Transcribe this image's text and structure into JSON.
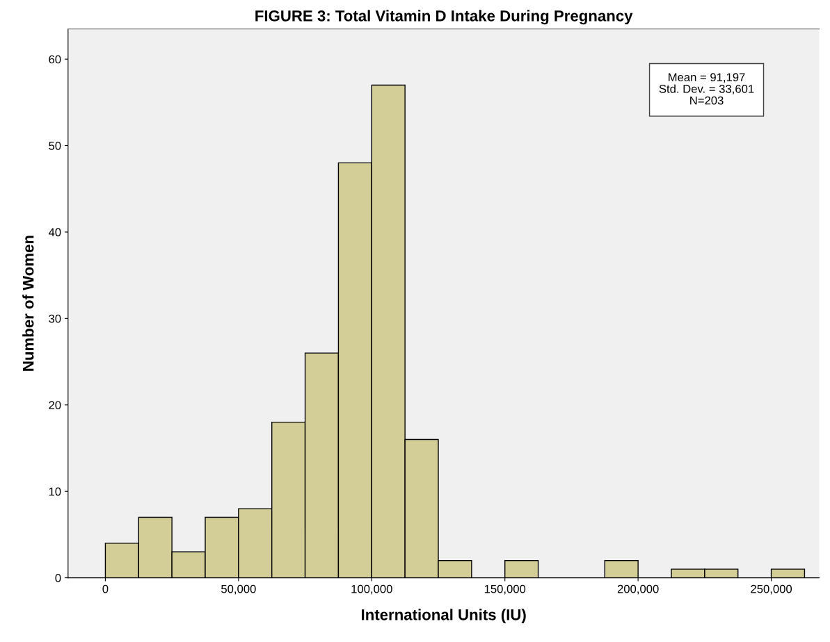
{
  "chart_data": {
    "type": "histogram",
    "title": "FIGURE 3: Total Vitamin D Intake During Pregnancy",
    "xlabel": "International Units (IU)",
    "ylabel": "Number of Women",
    "bins": [
      0,
      12500,
      25000,
      37500,
      50000,
      62500,
      75000,
      87500,
      100000,
      112500,
      125000,
      137500,
      150000,
      162500,
      175000,
      187500,
      200000,
      212500,
      225000,
      237500,
      250000,
      262500
    ],
    "values": [
      4,
      7,
      3,
      7,
      8,
      18,
      26,
      48,
      57,
      16,
      2,
      0,
      2,
      0,
      0,
      2,
      0,
      1,
      1,
      0,
      1
    ],
    "color": "#d3ce97",
    "xlim": [
      -14000,
      268000
    ],
    "ylim": [
      0,
      63.5
    ],
    "xticks": [
      {
        "value": 0,
        "label": "0"
      },
      {
        "value": 50000,
        "label": "50,000"
      },
      {
        "value": 100000,
        "label": "100,000"
      },
      {
        "value": 150000,
        "label": "150,000"
      },
      {
        "value": 200000,
        "label": "200,000"
      },
      {
        "value": 250000,
        "label": "250,000"
      }
    ],
    "yticks": [
      0,
      10,
      20,
      30,
      40,
      50,
      60
    ],
    "grid": false,
    "annotations": [
      "Mean = 91,197\nStd. Dev. = 33,601\nN=203"
    ]
  }
}
